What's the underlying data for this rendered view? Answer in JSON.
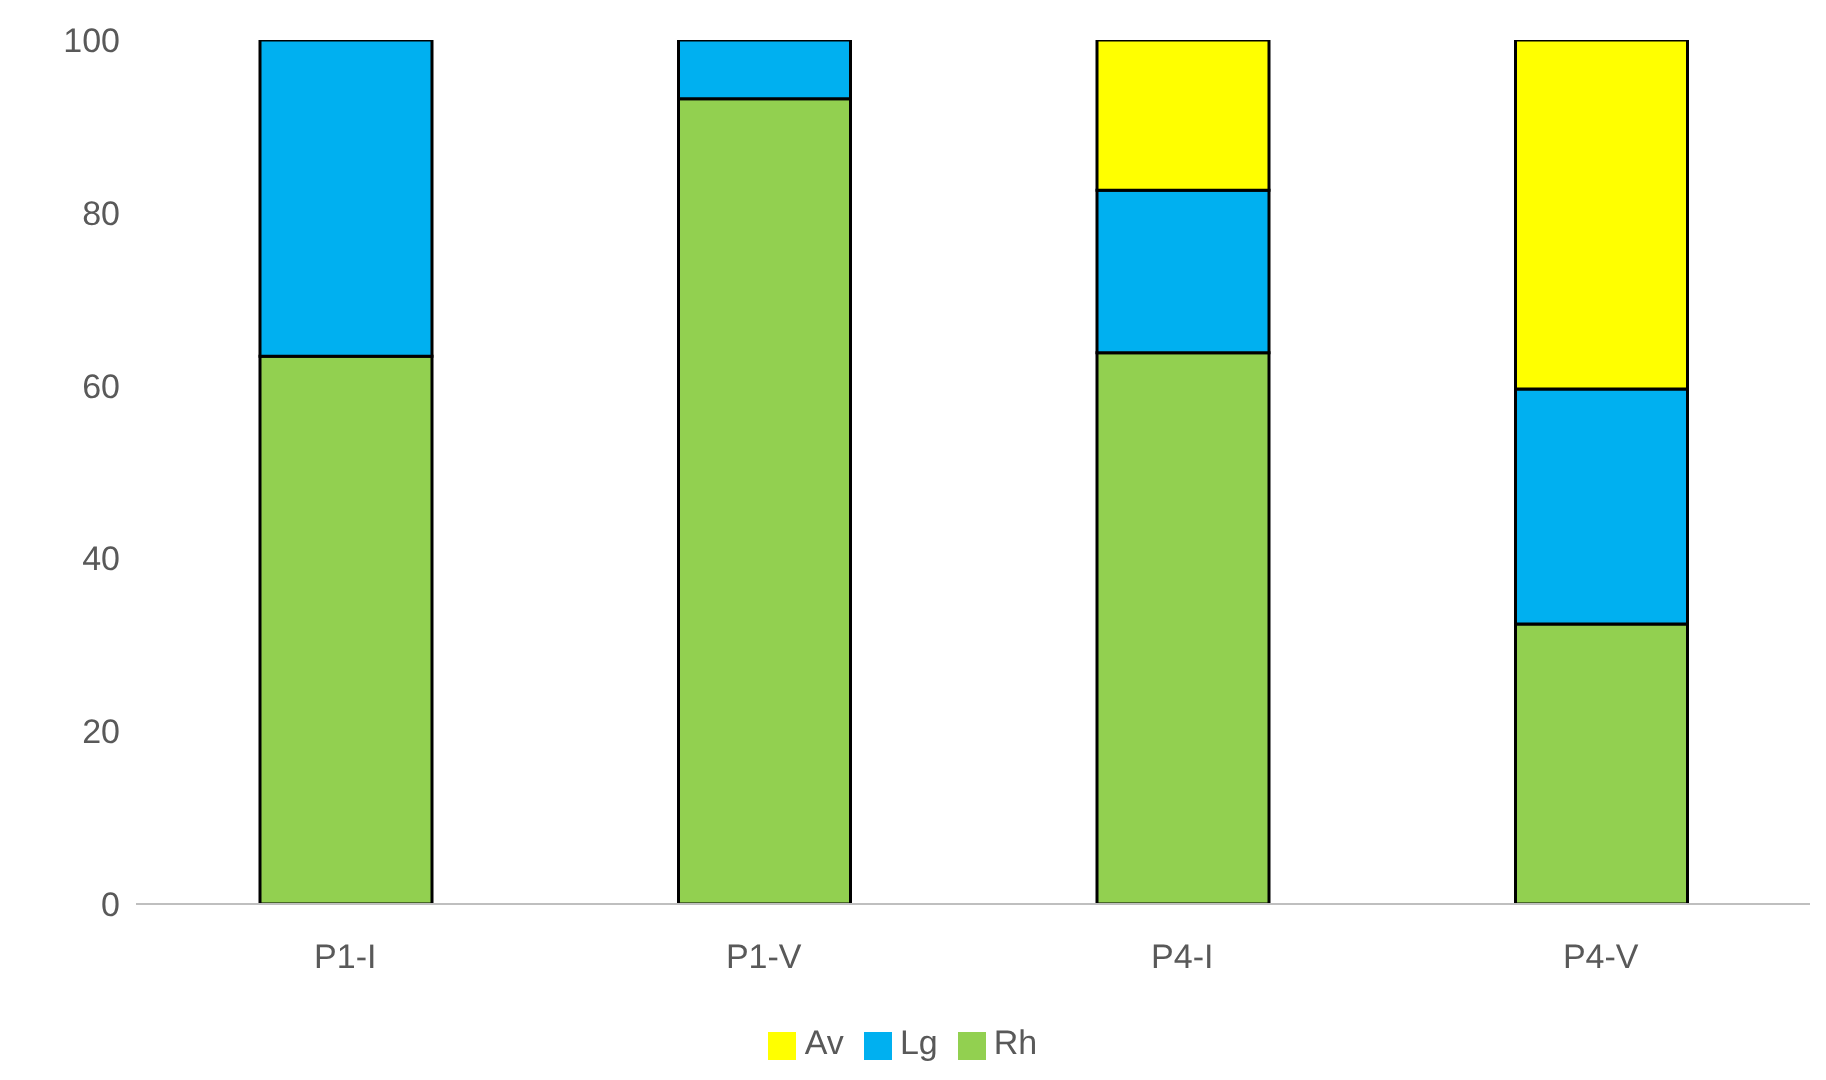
{
  "chart_data": {
    "type": "bar",
    "stacked": true,
    "categories": [
      "P1-I",
      "P1-V",
      "P4-I",
      "P4-V"
    ],
    "series": [
      {
        "name": "Rh",
        "color": "#92d050",
        "values": [
          63.4,
          93.2,
          63.8,
          32.4
        ]
      },
      {
        "name": "Lg",
        "color": "#00b0f0",
        "values": [
          36.6,
          6.8,
          18.8,
          27.2
        ]
      },
      {
        "name": "Av",
        "color": "#ffff00",
        "values": [
          0,
          0,
          17.4,
          40.4
        ]
      }
    ],
    "ylim": [
      0,
      100
    ],
    "yticks": [
      0,
      20,
      40,
      60,
      80,
      100
    ],
    "grid": false,
    "legend": "bottom"
  }
}
